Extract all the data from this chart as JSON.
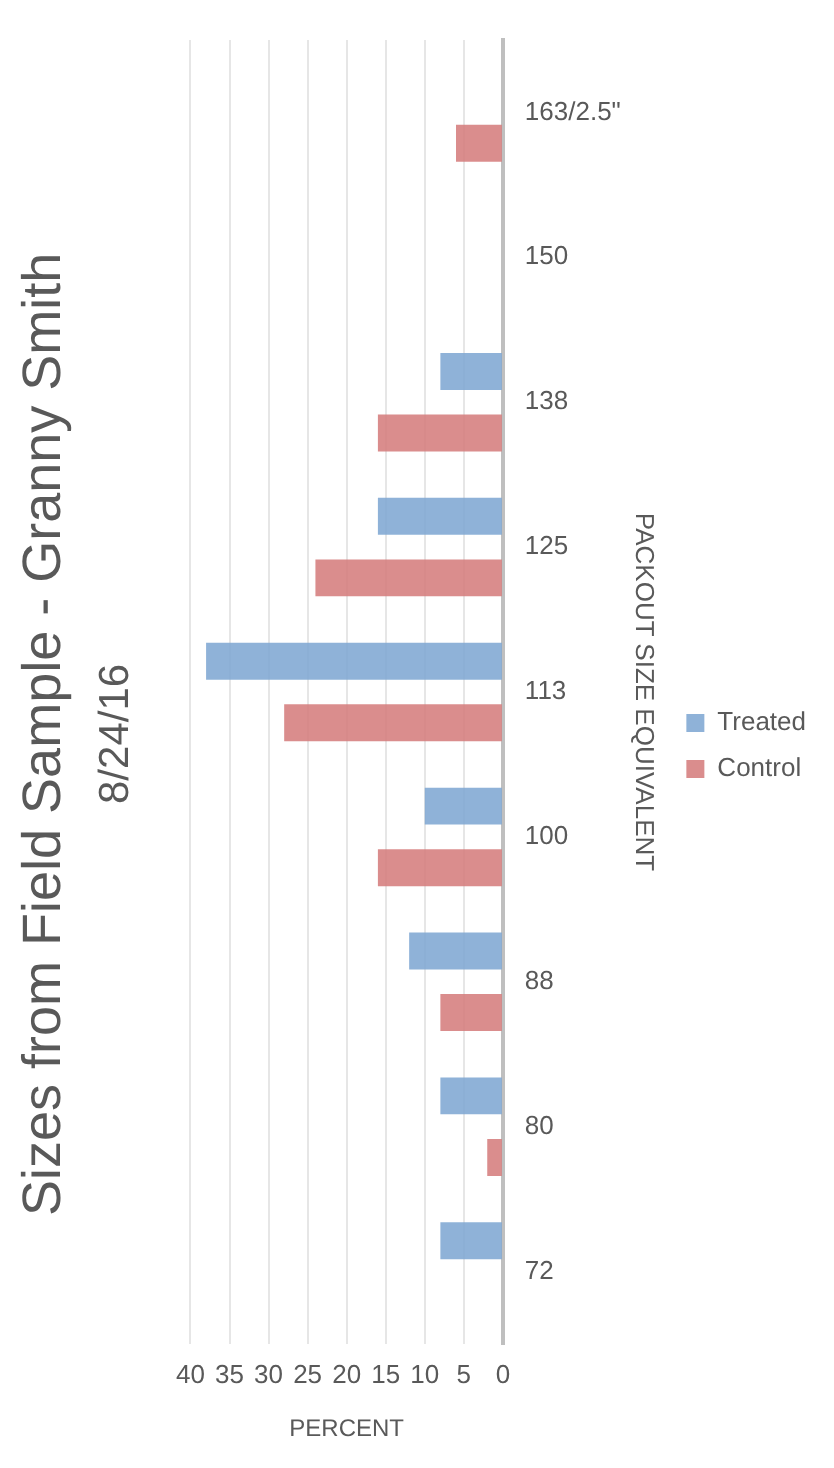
{
  "chart_data": {
    "type": "bar",
    "orientation": "horizontal",
    "title": "Sizes from Field Sample - Granny Smith",
    "subtitle": "8/24/16",
    "xlabel": "PERCENT",
    "ylabel": "PACKOUT SIZE EQUIVALENT",
    "categories": [
      "163/2.5\"",
      "150",
      "138",
      "125",
      "113",
      "100",
      "88",
      "80",
      "72"
    ],
    "series": [
      {
        "name": "Treated",
        "color": "#7ea6d2",
        "values": [
          0,
          0,
          8,
          16,
          38,
          10,
          12,
          8,
          8
        ]
      },
      {
        "name": "Control",
        "color": "#d47b7b",
        "values": [
          6,
          0,
          16,
          24,
          28,
          16,
          8,
          2,
          0
        ]
      }
    ],
    "xlim": [
      40,
      0
    ],
    "xticks": [
      40,
      35,
      30,
      25,
      20,
      15,
      10,
      5,
      0
    ],
    "grid": "x",
    "legend": "right"
  }
}
